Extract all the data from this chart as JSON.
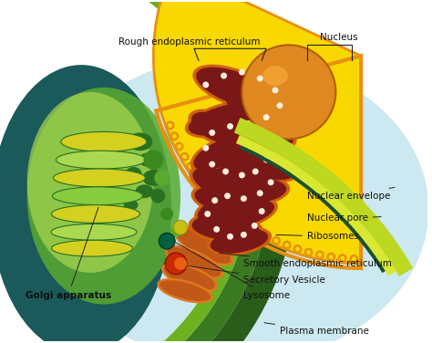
{
  "background_color": "#ffffff",
  "fig_width": 4.74,
  "fig_height": 3.76,
  "dpi": 100,
  "labels": {
    "rough_er": "Rough endoplasmic reticulum",
    "nucleus": "Nucleus",
    "nuclear_envelope": "Nuclear envelope",
    "nuclear_pore": "Nuclear pore",
    "ribosomes": "Ribosomes",
    "smooth_er": "Smooth endoplasmic reticulum",
    "secretory_vesicle": "Secretory Vesicle",
    "lysosome": "Lysosome",
    "plasma_membrane": "Plasma membrane",
    "golgi": "Golgi apparatus"
  },
  "colors": {
    "cell_bg": "#cce8f0",
    "cell_bg2": "#b8dce8",
    "outer_dark_green": "#2a5c1a",
    "outer_mid_green": "#3a7a20",
    "outer_light_green": "#6db020",
    "outer_yellow_green": "#a8c820",
    "inner_teal": "#1a5a5a",
    "golgi_bg_green": "#5aaa30",
    "golgi_light_green": "#88cc40",
    "golgi_pale_green": "#aad850",
    "golgi_yellow": "#d4d020",
    "golgi_dark_green": "#2a7020",
    "nucleus_bright_yellow": "#f8d800",
    "nucleus_orange_edge": "#e89010",
    "nucleus_body": "#f0c000",
    "nucleolus_orange": "#e08820",
    "nucleolus_light": "#f0a030",
    "rough_er_maroon": "#7a1818",
    "rough_er_dark": "#8b2020",
    "rough_er_orange": "#d06010",
    "rough_er_orange2": "#e07820",
    "smooth_er_orange": "#d07010",
    "ribosome_white": "#ffeedd",
    "ribosome_pink": "#ffccaa",
    "secretory_red": "#cc2800",
    "secretory_orange": "#e86010",
    "lysosome_green": "#006040",
    "lysosome_teal": "#008050",
    "plasma_yellow_green": "#bcd820",
    "plasma_dark": "#1a5030",
    "small_green1": "#3a8820",
    "small_green2": "#5aaa30",
    "vesicle_yellow": "#c8c010",
    "text_color": "#111111",
    "line_color": "#222222"
  }
}
